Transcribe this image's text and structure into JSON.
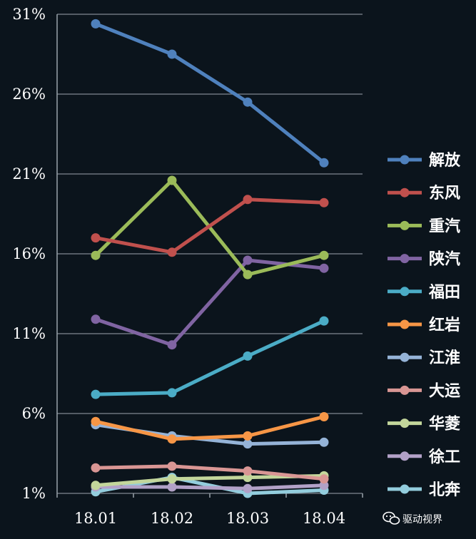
{
  "chart_data": {
    "type": "line",
    "title": "",
    "xlabel": "",
    "ylabel": "",
    "categories": [
      "18.01",
      "18.02",
      "18.03",
      "18.04"
    ],
    "y_ticks": [
      "1%",
      "6%",
      "11%",
      "16%",
      "21%",
      "26%",
      "31%"
    ],
    "ylim": [
      1,
      31
    ],
    "grid": true,
    "legend_position": "right",
    "series": [
      {
        "name": "解放",
        "color": "#4f81bd",
        "values": [
          30.4,
          28.5,
          25.5,
          21.7
        ]
      },
      {
        "name": "东风",
        "color": "#c0504d",
        "values": [
          17.0,
          16.1,
          19.4,
          19.2
        ]
      },
      {
        "name": "重汽",
        "color": "#9bbb59",
        "values": [
          15.9,
          20.6,
          14.7,
          15.9
        ]
      },
      {
        "name": "陕汽",
        "color": "#8064a2",
        "values": [
          11.9,
          10.3,
          15.6,
          15.1
        ]
      },
      {
        "name": "福田",
        "color": "#4bacc6",
        "values": [
          7.2,
          7.3,
          9.6,
          11.8
        ]
      },
      {
        "name": "红岩",
        "color": "#f79646",
        "values": [
          5.5,
          4.4,
          4.6,
          5.8
        ]
      },
      {
        "name": "江淮",
        "color": "#95b3d7",
        "values": [
          5.3,
          4.6,
          4.1,
          4.2
        ]
      },
      {
        "name": "大运",
        "color": "#d99694",
        "values": [
          2.6,
          2.7,
          2.4,
          1.9
        ]
      },
      {
        "name": "华菱",
        "color": "#c3d69b",
        "values": [
          1.5,
          1.9,
          2.0,
          2.1
        ]
      },
      {
        "name": "徐工",
        "color": "#b2a1c7",
        "values": [
          1.4,
          1.4,
          1.3,
          1.5
        ]
      },
      {
        "name": "北奔",
        "color": "#93cddd",
        "values": [
          1.1,
          2.0,
          1.0,
          1.2
        ]
      }
    ]
  },
  "watermark": {
    "text": "驱动视界",
    "icon": "wechat-icon"
  }
}
